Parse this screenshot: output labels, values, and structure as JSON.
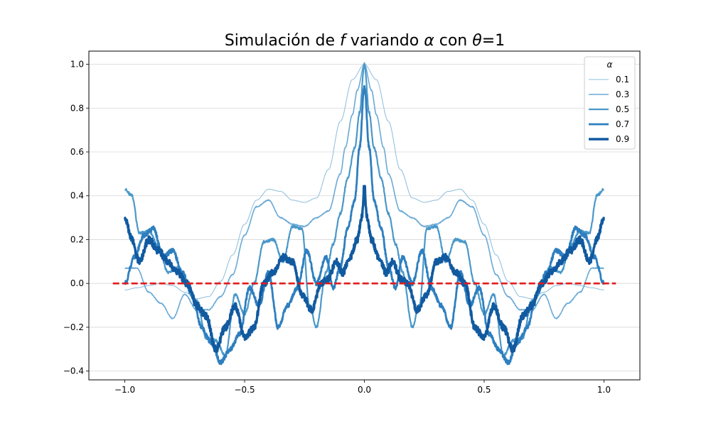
{
  "chart_data": {
    "type": "line",
    "title_parts": [
      "Simulación de ",
      "f",
      " variando ",
      "α",
      " con ",
      "θ",
      "=1"
    ],
    "xlabel": "",
    "ylabel": "",
    "xlim": [
      -1.15,
      1.15
    ],
    "ylim": [
      -0.44,
      1.06
    ],
    "x_ticks": [
      -1.0,
      -0.5,
      0.0,
      0.5,
      1.0
    ],
    "x_tick_labels": [
      "−1.0",
      "−0.5",
      "0.0",
      "0.5",
      "1.0"
    ],
    "y_ticks": [
      -0.4,
      -0.2,
      0.0,
      0.2,
      0.4,
      0.6,
      0.8,
      1.0
    ],
    "y_tick_labels": [
      "−0.4",
      "−0.2",
      "0.0",
      "0.2",
      "0.4",
      "0.6",
      "0.8",
      "1.0"
    ],
    "grid": "horizontal",
    "legend": {
      "title": "α",
      "placement": "top-right"
    },
    "reference_line": {
      "y": 0.0,
      "x_range": [
        -1.05,
        1.05
      ],
      "color": "#e31a1c",
      "style": "dashed"
    },
    "series": [
      {
        "name": "0.1",
        "color": "#8bbcdd",
        "x": [
          0,
          0.05,
          0.1,
          0.15,
          0.2,
          0.25,
          0.3,
          0.35,
          0.4,
          0.45,
          0.5,
          0.55,
          0.6,
          0.65,
          0.7,
          0.75,
          0.8,
          0.85,
          0.9,
          0.95,
          1.0
        ],
        "y": [
          1.0,
          0.93,
          0.74,
          0.52,
          0.39,
          0.37,
          0.38,
          0.42,
          0.43,
          0.38,
          0.27,
          0.13,
          0.01,
          -0.06,
          -0.07,
          -0.04,
          -0.01,
          0.0,
          -0.01,
          -0.02,
          -0.03
        ]
      },
      {
        "name": "0.3",
        "color": "#6aaad6",
        "x": [
          0,
          0.03,
          0.05,
          0.08,
          0.1,
          0.15,
          0.2,
          0.25,
          0.3,
          0.35,
          0.4,
          0.45,
          0.5,
          0.55,
          0.6,
          0.65,
          0.7,
          0.75,
          0.8,
          0.85,
          0.9,
          0.95,
          1.0
        ],
        "y": [
          1.0,
          0.88,
          0.77,
          0.62,
          0.5,
          0.33,
          0.3,
          0.26,
          0.27,
          0.3,
          0.38,
          0.35,
          0.22,
          0.04,
          -0.06,
          -0.12,
          -0.12,
          -0.05,
          -0.16,
          -0.09,
          -0.04,
          0.07,
          0.07
        ]
      },
      {
        "name": "0.5",
        "color": "#4a98c9",
        "x": [
          0,
          0.02,
          0.04,
          0.07,
          0.1,
          0.13,
          0.16,
          0.2,
          0.23,
          0.26,
          0.3,
          0.34,
          0.38,
          0.42,
          0.46,
          0.5,
          0.54,
          0.58,
          0.62,
          0.66,
          0.7,
          0.74,
          0.78,
          0.82,
          0.86,
          0.9,
          0.94,
          0.97,
          1.0
        ],
        "y": [
          1.0,
          0.78,
          0.62,
          0.48,
          0.32,
          0.18,
          0.05,
          -0.2,
          -0.1,
          0.25,
          0.26,
          0.1,
          0.2,
          0.19,
          0.0,
          -0.14,
          -0.05,
          -0.33,
          -0.26,
          -0.25,
          -0.08,
          0.0,
          0.07,
          0.05,
          0.17,
          0.24,
          0.23,
          0.4,
          0.43
        ]
      },
      {
        "name": "0.7",
        "color": "#2e7fbf",
        "x": [
          0,
          0.02,
          0.04,
          0.07,
          0.1,
          0.13,
          0.16,
          0.2,
          0.24,
          0.28,
          0.32,
          0.36,
          0.4,
          0.44,
          0.48,
          0.52,
          0.56,
          0.6,
          0.64,
          0.68,
          0.72,
          0.76,
          0.8,
          0.84,
          0.88,
          0.92,
          0.96,
          1.0
        ],
        "y": [
          0.9,
          0.62,
          0.38,
          0.25,
          0.08,
          -0.02,
          0.12,
          0.0,
          0.15,
          -0.02,
          -0.1,
          -0.2,
          0.05,
          -0.1,
          -0.02,
          -0.23,
          -0.3,
          -0.36,
          -0.27,
          -0.2,
          -0.05,
          0.05,
          0.15,
          0.12,
          0.25,
          0.22,
          0.12,
          0.0
        ]
      },
      {
        "name": "0.9",
        "color": "#115aa0",
        "x": [
          0,
          0.01,
          0.03,
          0.06,
          0.09,
          0.12,
          0.15,
          0.18,
          0.22,
          0.26,
          0.3,
          0.34,
          0.38,
          0.42,
          0.46,
          0.5,
          0.54,
          0.58,
          0.62,
          0.66,
          0.7,
          0.74,
          0.78,
          0.82,
          0.86,
          0.9,
          0.94,
          0.97,
          1.0
        ],
        "y": [
          0.45,
          0.3,
          0.2,
          0.12,
          0.05,
          0.1,
          0.02,
          0.0,
          -0.12,
          -0.05,
          0.1,
          0.12,
          0.05,
          0.0,
          -0.2,
          -0.25,
          -0.1,
          -0.2,
          -0.3,
          -0.15,
          -0.1,
          0.0,
          0.05,
          0.1,
          0.15,
          0.2,
          0.1,
          0.2,
          0.3
        ]
      }
    ]
  }
}
